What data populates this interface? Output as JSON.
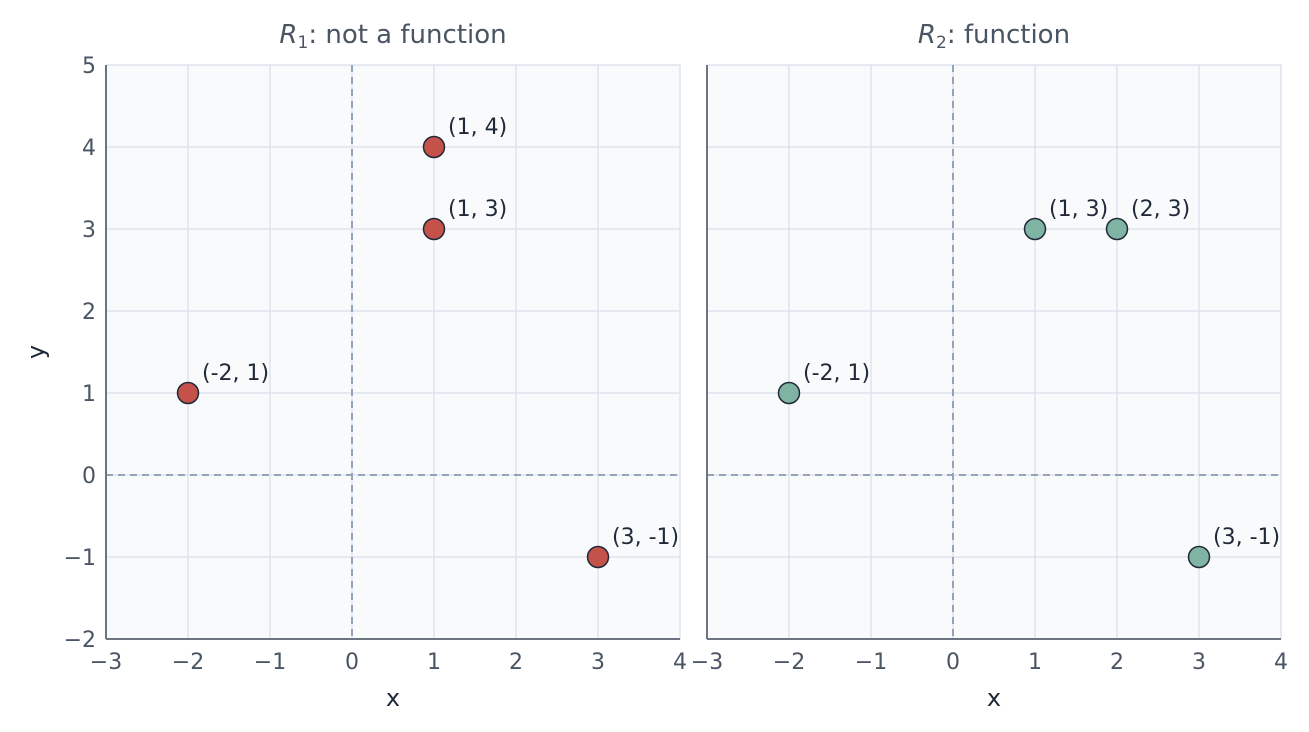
{
  "chart_data": [
    {
      "type": "scatter",
      "title": "R_1: not a function",
      "title_main": "R",
      "title_sub": "1",
      "title_rest": ": not a function",
      "xlabel": "x",
      "ylabel": "y",
      "xlim": [
        -3,
        4
      ],
      "ylim": [
        -2,
        5
      ],
      "xticks": [
        -3,
        -2,
        -1,
        0,
        1,
        2,
        3,
        4
      ],
      "yticks": [
        -2,
        -1,
        0,
        1,
        2,
        3,
        4,
        5
      ],
      "xtick_labels": [
        "−3",
        "−2",
        "−1",
        "0",
        "1",
        "2",
        "3",
        "4"
      ],
      "ytick_labels": [
        "−2",
        "−1",
        "0",
        "1",
        "2",
        "3",
        "4",
        "5"
      ],
      "grid": true,
      "color": "#c4524a",
      "points": [
        {
          "x": 1,
          "y": 4,
          "label": "(1, 4)"
        },
        {
          "x": 1,
          "y": 3,
          "label": "(1, 3)"
        },
        {
          "x": -2,
          "y": 1,
          "label": "(-2, 1)"
        },
        {
          "x": 3,
          "y": -1,
          "label": "(3, -1)"
        }
      ]
    },
    {
      "type": "scatter",
      "title": "R_2: function",
      "title_main": "R",
      "title_sub": "2",
      "title_rest": ": function",
      "xlabel": "x",
      "ylabel": "",
      "xlim": [
        -3,
        4
      ],
      "ylim": [
        -2,
        5
      ],
      "xticks": [
        -3,
        -2,
        -1,
        0,
        1,
        2,
        3,
        4
      ],
      "yticks": [
        -2,
        -1,
        0,
        1,
        2,
        3,
        4,
        5
      ],
      "xtick_labels": [
        "−3",
        "−2",
        "−1",
        "0",
        "1",
        "2",
        "3",
        "4"
      ],
      "ytick_labels": [],
      "grid": true,
      "color": "#7fb3a3",
      "points": [
        {
          "x": 1,
          "y": 3,
          "label": "(1, 3)"
        },
        {
          "x": 2,
          "y": 3,
          "label": "(2, 3)"
        },
        {
          "x": -2,
          "y": 1,
          "label": "(-2, 1)"
        },
        {
          "x": 3,
          "y": -1,
          "label": "(3, -1)"
        }
      ]
    }
  ]
}
